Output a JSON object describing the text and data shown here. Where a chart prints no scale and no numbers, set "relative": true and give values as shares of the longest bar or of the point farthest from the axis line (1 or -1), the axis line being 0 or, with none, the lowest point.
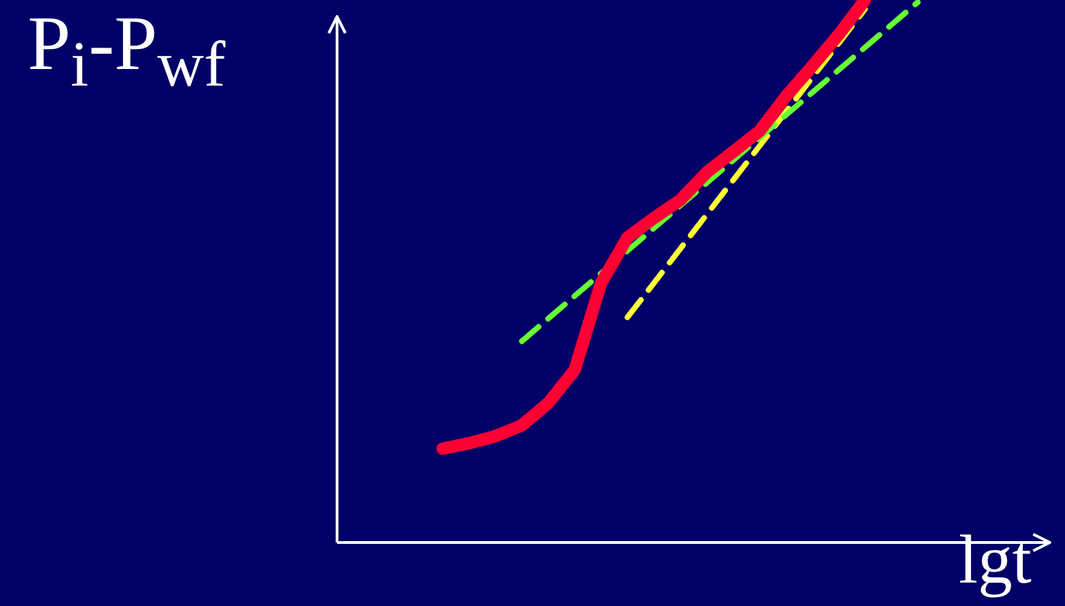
{
  "chart_data": {
    "type": "line",
    "relative": true,
    "ylabel": "P$_{i}$-P$_{wf}$",
    "xlabel": "lgt",
    "legend": false,
    "marker": "none",
    "categories": [
      null,
      null,
      null,
      null,
      null,
      null,
      null,
      null,
      null,
      null,
      null,
      null,
      null,
      null,
      null,
      null,
      null,
      null,
      null,
      null,
      null,
      null,
      null,
      null,
      null,
      null,
      null,
      null
    ],
    "series": [
      {
        "color": "#ff0033",
        "line_style": "solid",
        "values": [
          null,
          null,
          null,
          null,
          0.173,
          0.183,
          0.196,
          0.216,
          0.257,
          0.318,
          0.478,
          0.562,
          0.598,
          0.631,
          0.682,
          0.72,
          0.758,
          0.822,
          0.878,
          0.936,
          1,
          null,
          null,
          null,
          null,
          null,
          null,
          null
        ]
      },
      {
        "color": "#66ff33",
        "line_style": "dashed",
        "values": [
          null,
          null,
          null,
          null,
          null,
          null,
          null,
          0.371,
          null,
          null,
          null,
          null,
          null,
          null,
          null,
          null,
          null,
          null,
          null,
          null,
          null,
          null,
          0.996,
          null,
          null,
          null,
          null,
          null
        ]
      },
      {
        "color": "#ffff33",
        "line_style": "dashed",
        "values": [
          null,
          null,
          null,
          null,
          null,
          null,
          null,
          null,
          null,
          null,
          null,
          0.415,
          null,
          null,
          null,
          null,
          null,
          null,
          null,
          null,
          0.983,
          null,
          null,
          null,
          null,
          null,
          null,
          null
        ]
      }
    ]
  }
}
